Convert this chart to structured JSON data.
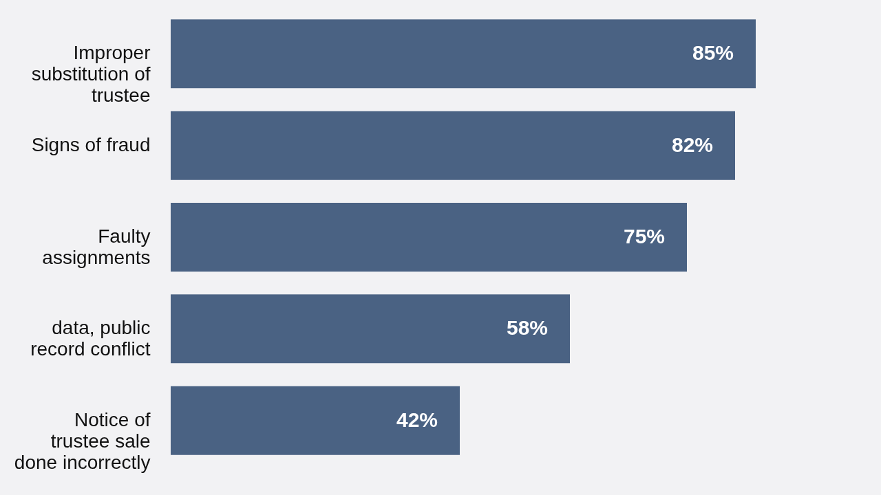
{
  "chart_data": {
    "type": "bar",
    "orientation": "horizontal",
    "categories": [
      "Improper substitution of trustee",
      "Signs of fraud",
      "Faulty assignments",
      "data, public record conflict",
      "Notice of trustee sale done incorrectly"
    ],
    "values": [
      85,
      82,
      75,
      58,
      42
    ],
    "value_labels": [
      "85%",
      "82%",
      "75%",
      "58%",
      "42%"
    ],
    "color": "#4a6283"
  }
}
